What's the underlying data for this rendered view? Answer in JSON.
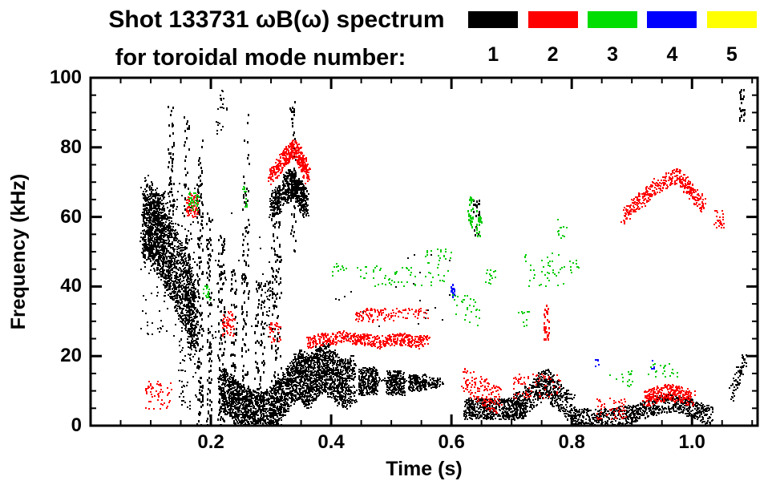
{
  "header": {
    "line1": "Shot 133731 ωB(ω) spectrum",
    "line2": "for toroidal mode number:"
  },
  "legend": {
    "modes": [
      {
        "label": "1",
        "color": "#000000"
      },
      {
        "label": "2",
        "color": "#ff0000"
      },
      {
        "label": "3",
        "color": "#00dd00"
      },
      {
        "label": "4",
        "color": "#0000ff"
      },
      {
        "label": "5",
        "color": "#ffff00"
      }
    ]
  },
  "chart_data": {
    "type": "scatter",
    "title": "Shot 133731 ωB(ω) spectrum for toroidal mode number: 1 2 3 4 5",
    "xlabel": "Time (s)",
    "ylabel": "Frequency (kHz)",
    "xlim": [
      0,
      1.109
    ],
    "ylim": [
      0,
      100
    ],
    "x_major_ticks": [
      0.2,
      0.4,
      0.6,
      0.8,
      1.0
    ],
    "x_tick_labels": [
      "0.2",
      "0.4",
      "0.6",
      "0.8",
      "1.0"
    ],
    "x_minor_step": 0.05,
    "y_major_ticks": [
      0,
      20,
      40,
      60,
      80,
      100
    ],
    "y_tick_labels": [
      "0",
      "20",
      "40",
      "60",
      "80",
      "100"
    ],
    "y_minor_step": 5,
    "grid": false,
    "legend_position": "top-right",
    "series": [
      {
        "name": "n=1",
        "color": "#000000"
      },
      {
        "name": "n=2",
        "color": "#ff0000"
      },
      {
        "name": "n=3",
        "color": "#00cc00"
      },
      {
        "name": "n=4",
        "color": "#0000ff"
      },
      {
        "name": "n=5",
        "color": "#ffee00"
      }
    ],
    "clusters": [
      {
        "mode": 1,
        "type": "path",
        "pts": [
          [
            0.09,
            62
          ],
          [
            0.105,
            57
          ],
          [
            0.12,
            52
          ],
          [
            0.135,
            47
          ],
          [
            0.15,
            41
          ],
          [
            0.165,
            35
          ],
          [
            0.172,
            31
          ]
        ],
        "hw": 11,
        "n": 1500
      },
      {
        "mode": 1,
        "type": "box",
        "t": [
          0.085,
          0.122
        ],
        "f": [
          48,
          67
        ],
        "n": 380
      },
      {
        "mode": 1,
        "type": "box",
        "t": [
          0.08,
          0.178
        ],
        "f": [
          26,
          70
        ],
        "n": 180
      },
      {
        "mode": 1,
        "type": "box",
        "t": [
          0.145,
          0.175
        ],
        "f": [
          5,
          28
        ],
        "n": 55
      },
      {
        "mode": 1,
        "type": "box",
        "t": [
          0.128,
          0.137
        ],
        "f": [
          60,
          92
        ],
        "n": 55,
        "h": 3
      },
      {
        "mode": 1,
        "type": "box",
        "t": [
          0.155,
          0.165
        ],
        "f": [
          30,
          90
        ],
        "n": 70,
        "h": 3
      },
      {
        "mode": 1,
        "type": "box",
        "t": [
          0.176,
          0.186
        ],
        "f": [
          0,
          87
        ],
        "n": 150,
        "h": 3
      },
      {
        "mode": 1,
        "type": "box",
        "t": [
          0.192,
          0.201
        ],
        "f": [
          0,
          62
        ],
        "n": 95,
        "h": 3
      },
      {
        "mode": 1,
        "type": "box",
        "t": [
          0.21,
          0.223
        ],
        "f": [
          0,
          55
        ],
        "n": 120,
        "h": 3
      },
      {
        "mode": 1,
        "type": "box",
        "t": [
          0.208,
          0.226
        ],
        "f": [
          84,
          97
        ],
        "n": 22
      },
      {
        "mode": 1,
        "type": "box",
        "t": [
          0.232,
          0.241
        ],
        "f": [
          0,
          45
        ],
        "n": 70,
        "h": 3
      },
      {
        "mode": 1,
        "type": "box",
        "t": [
          0.25,
          0.263
        ],
        "f": [
          0,
          55
        ],
        "n": 90,
        "h": 3
      },
      {
        "mode": 1,
        "type": "box",
        "t": [
          0.252,
          0.263
        ],
        "f": [
          55,
          92
        ],
        "n": 28,
        "h": 3
      },
      {
        "mode": 1,
        "type": "box",
        "t": [
          0.272,
          0.288
        ],
        "f": [
          0,
          42
        ],
        "n": 85,
        "h": 3
      },
      {
        "mode": 1,
        "type": "box",
        "t": [
          0.285,
          0.299
        ],
        "f": [
          28,
          42
        ],
        "n": 35
      },
      {
        "mode": 1,
        "type": "box",
        "t": [
          0.3,
          0.316
        ],
        "f": [
          0,
          66
        ],
        "n": 130,
        "h": 3
      },
      {
        "mode": 1,
        "type": "box",
        "t": [
          0.33,
          0.341
        ],
        "f": [
          50,
          95
        ],
        "n": 45,
        "h": 3
      },
      {
        "mode": 1,
        "type": "path",
        "pts": [
          [
            0.3,
            63
          ],
          [
            0.315,
            66
          ],
          [
            0.33,
            70
          ],
          [
            0.34,
            69
          ],
          [
            0.35,
            66
          ],
          [
            0.358,
            64
          ]
        ],
        "hw": 4,
        "n": 650
      },
      {
        "mode": 1,
        "type": "path",
        "pts": [
          [
            0.215,
            11
          ],
          [
            0.23,
            9
          ],
          [
            0.245,
            7
          ],
          [
            0.26,
            5
          ],
          [
            0.275,
            4
          ],
          [
            0.29,
            4
          ],
          [
            0.305,
            6
          ],
          [
            0.32,
            9
          ],
          [
            0.335,
            13
          ]
        ],
        "hw": 6,
        "n": 1500
      },
      {
        "mode": 1,
        "type": "path",
        "pts": [
          [
            0.335,
            13
          ],
          [
            0.35,
            15
          ],
          [
            0.362,
            12
          ],
          [
            0.375,
            16
          ],
          [
            0.39,
            17
          ],
          [
            0.405,
            14
          ],
          [
            0.42,
            12
          ],
          [
            0.438,
            14
          ]
        ],
        "hw": 7,
        "n": 1450
      },
      {
        "mode": 1,
        "type": "box",
        "t": [
          0.445,
          0.476
        ],
        "f": [
          9,
          17
        ],
        "n": 260
      },
      {
        "mode": 1,
        "type": "box",
        "t": [
          0.49,
          0.521
        ],
        "f": [
          9,
          16
        ],
        "n": 220
      },
      {
        "mode": 1,
        "type": "box",
        "t": [
          0.528,
          0.557
        ],
        "f": [
          10,
          15
        ],
        "n": 150
      },
      {
        "mode": 1,
        "type": "box",
        "t": [
          0.56,
          0.58
        ],
        "f": [
          11,
          14
        ],
        "n": 50
      },
      {
        "mode": 1,
        "type": "box",
        "t": [
          0.45,
          0.585
        ],
        "f": [
          12,
          14
        ],
        "n": 70
      },
      {
        "mode": 1,
        "type": "box",
        "t": [
          0.62,
          0.722
        ],
        "f": [
          2,
          8
        ],
        "n": 520
      },
      {
        "mode": 1,
        "type": "path",
        "pts": [
          [
            0.7,
            5
          ],
          [
            0.72,
            7
          ],
          [
            0.74,
            10
          ],
          [
            0.752,
            13
          ],
          [
            0.765,
            11
          ],
          [
            0.78,
            8
          ],
          [
            0.8,
            5
          ]
        ],
        "hw": 4,
        "n": 560
      },
      {
        "mode": 1,
        "type": "box",
        "t": [
          0.8,
          0.88
        ],
        "f": [
          0.5,
          5
        ],
        "n": 230
      },
      {
        "mode": 1,
        "type": "path",
        "pts": [
          [
            0.88,
            3
          ],
          [
            0.91,
            4
          ],
          [
            0.94,
            6
          ],
          [
            0.97,
            7
          ],
          [
            1.0,
            5
          ],
          [
            1.03,
            3
          ]
        ],
        "hw": 2.6,
        "n": 600
      },
      {
        "mode": 1,
        "type": "path",
        "pts": [
          [
            1.065,
            9
          ],
          [
            1.075,
            14
          ],
          [
            1.085,
            19
          ]
        ],
        "hw": 2,
        "n": 70
      },
      {
        "mode": 1,
        "type": "box",
        "t": [
          1.078,
          1.086
        ],
        "f": [
          88,
          97
        ],
        "n": 26,
        "h": 3
      },
      {
        "mode": 1,
        "type": "box",
        "t": [
          0.635,
          0.646
        ],
        "f": [
          55,
          65
        ],
        "n": 22,
        "h": 3
      },
      {
        "mode": 1,
        "type": "box",
        "t": [
          0.4,
          0.6
        ],
        "f": [
          25,
          50
        ],
        "n": 22
      },
      {
        "mode": 1,
        "type": "box",
        "t": [
          0.18,
          0.32
        ],
        "f": [
          20,
          62
        ],
        "n": 40
      },
      {
        "mode": 2,
        "type": "path",
        "pts": [
          [
            0.298,
            71
          ],
          [
            0.31,
            74
          ],
          [
            0.32,
            77
          ],
          [
            0.33,
            79
          ],
          [
            0.338,
            80
          ],
          [
            0.346,
            78
          ],
          [
            0.353,
            75
          ],
          [
            0.359,
            72
          ]
        ],
        "hw": 2.4,
        "n": 430
      },
      {
        "mode": 2,
        "type": "box",
        "t": [
          0.09,
          0.135
        ],
        "f": [
          5,
          13
        ],
        "n": 55
      },
      {
        "mode": 2,
        "type": "box",
        "t": [
          0.158,
          0.178
        ],
        "f": [
          60,
          67
        ],
        "n": 85
      },
      {
        "mode": 2,
        "type": "box",
        "t": [
          0.218,
          0.238
        ],
        "f": [
          26,
          33
        ],
        "n": 55
      },
      {
        "mode": 2,
        "type": "box",
        "t": [
          0.295,
          0.315
        ],
        "f": [
          24,
          30
        ],
        "n": 35
      },
      {
        "mode": 2,
        "type": "path",
        "pts": [
          [
            0.36,
            24
          ],
          [
            0.38,
            25
          ],
          [
            0.4,
            25
          ],
          [
            0.42,
            26
          ],
          [
            0.44,
            25
          ],
          [
            0.46,
            25
          ],
          [
            0.48,
            24
          ],
          [
            0.5,
            25
          ],
          [
            0.52,
            25
          ],
          [
            0.54,
            24
          ],
          [
            0.56,
            25
          ]
        ],
        "hw": 1.7,
        "n": 520
      },
      {
        "mode": 2,
        "type": "box",
        "t": [
          0.44,
          0.505
        ],
        "f": [
          30,
          34
        ],
        "n": 85
      },
      {
        "mode": 2,
        "type": "box",
        "t": [
          0.505,
          0.56
        ],
        "f": [
          31,
          34
        ],
        "n": 40
      },
      {
        "mode": 2,
        "type": "path",
        "pts": [
          [
            0.62,
            14
          ],
          [
            0.64,
            11
          ],
          [
            0.66,
            9
          ],
          [
            0.68,
            7
          ]
        ],
        "hw": 4,
        "n": 150
      },
      {
        "mode": 2,
        "type": "box",
        "t": [
          0.7,
          0.78
        ],
        "f": [
          8,
          15
        ],
        "n": 70
      },
      {
        "mode": 2,
        "type": "box",
        "t": [
          0.752,
          0.761
        ],
        "f": [
          25,
          35
        ],
        "n": 30,
        "h": 3
      },
      {
        "mode": 2,
        "type": "path",
        "pts": [
          [
            0.885,
            60
          ],
          [
            0.9,
            63
          ],
          [
            0.92,
            66
          ],
          [
            0.94,
            69
          ],
          [
            0.96,
            71
          ],
          [
            0.975,
            72
          ],
          [
            0.99,
            69
          ],
          [
            1.005,
            66
          ],
          [
            1.02,
            63
          ]
        ],
        "hw": 2.2,
        "n": 400
      },
      {
        "mode": 2,
        "type": "path",
        "pts": [
          [
            0.92,
            8
          ],
          [
            0.94,
            9
          ],
          [
            0.96,
            10
          ],
          [
            0.98,
            9
          ],
          [
            1.0,
            8
          ]
        ],
        "hw": 2.4,
        "n": 280
      },
      {
        "mode": 2,
        "type": "box",
        "t": [
          0.84,
          0.89
        ],
        "f": [
          2,
          8
        ],
        "n": 55
      },
      {
        "mode": 2,
        "type": "box",
        "t": [
          1.035,
          1.052
        ],
        "f": [
          57,
          62
        ],
        "n": 26
      },
      {
        "mode": 3,
        "type": "box",
        "t": [
          0.162,
          0.178
        ],
        "f": [
          62,
          68
        ],
        "n": 35
      },
      {
        "mode": 3,
        "type": "box",
        "t": [
          0.186,
          0.197
        ],
        "f": [
          36,
          41
        ],
        "n": 18
      },
      {
        "mode": 3,
        "type": "box",
        "t": [
          0.252,
          0.263
        ],
        "f": [
          63,
          69
        ],
        "n": 12
      },
      {
        "mode": 3,
        "type": "box",
        "t": [
          0.4,
          0.425
        ],
        "f": [
          43,
          47
        ],
        "n": 12
      },
      {
        "mode": 3,
        "type": "box",
        "t": [
          0.44,
          0.6
        ],
        "f": [
          40,
          46
        ],
        "n": 60
      },
      {
        "mode": 3,
        "type": "box",
        "t": [
          0.555,
          0.6
        ],
        "f": [
          46,
          51
        ],
        "n": 22
      },
      {
        "mode": 3,
        "type": "box",
        "t": [
          0.627,
          0.635
        ],
        "f": [
          57,
          66
        ],
        "n": 26,
        "h": 3
      },
      {
        "mode": 3,
        "type": "box",
        "t": [
          0.641,
          0.649
        ],
        "f": [
          54,
          62
        ],
        "n": 22,
        "h": 3
      },
      {
        "mode": 3,
        "type": "box",
        "t": [
          0.655,
          0.672
        ],
        "f": [
          41,
          45
        ],
        "n": 14
      },
      {
        "mode": 3,
        "type": "box",
        "t": [
          0.6,
          0.645
        ],
        "f": [
          29,
          38
        ],
        "n": 30
      },
      {
        "mode": 3,
        "type": "box",
        "t": [
          0.72,
          0.786
        ],
        "f": [
          40,
          50
        ],
        "n": 40
      },
      {
        "mode": 3,
        "type": "box",
        "t": [
          0.775,
          0.791
        ],
        "f": [
          54,
          60
        ],
        "n": 12
      },
      {
        "mode": 3,
        "type": "box",
        "t": [
          0.795,
          0.811
        ],
        "f": [
          44,
          48
        ],
        "n": 10
      },
      {
        "mode": 3,
        "type": "box",
        "t": [
          0.86,
          0.9
        ],
        "f": [
          11,
          16
        ],
        "n": 18
      },
      {
        "mode": 3,
        "type": "box",
        "t": [
          0.925,
          0.976
        ],
        "f": [
          14,
          18
        ],
        "n": 22
      },
      {
        "mode": 3,
        "type": "box",
        "t": [
          0.71,
          0.731
        ],
        "f": [
          28,
          33
        ],
        "n": 10
      },
      {
        "mode": 4,
        "type": "box",
        "t": [
          0.598,
          0.605
        ],
        "f": [
          37,
          41
        ],
        "n": 12,
        "h": 3
      },
      {
        "mode": 4,
        "type": "box",
        "t": [
          0.838,
          0.845
        ],
        "f": [
          17,
          20
        ],
        "n": 6
      },
      {
        "mode": 4,
        "type": "box",
        "t": [
          0.93,
          0.937
        ],
        "f": [
          16,
          19
        ],
        "n": 5
      }
    ]
  }
}
